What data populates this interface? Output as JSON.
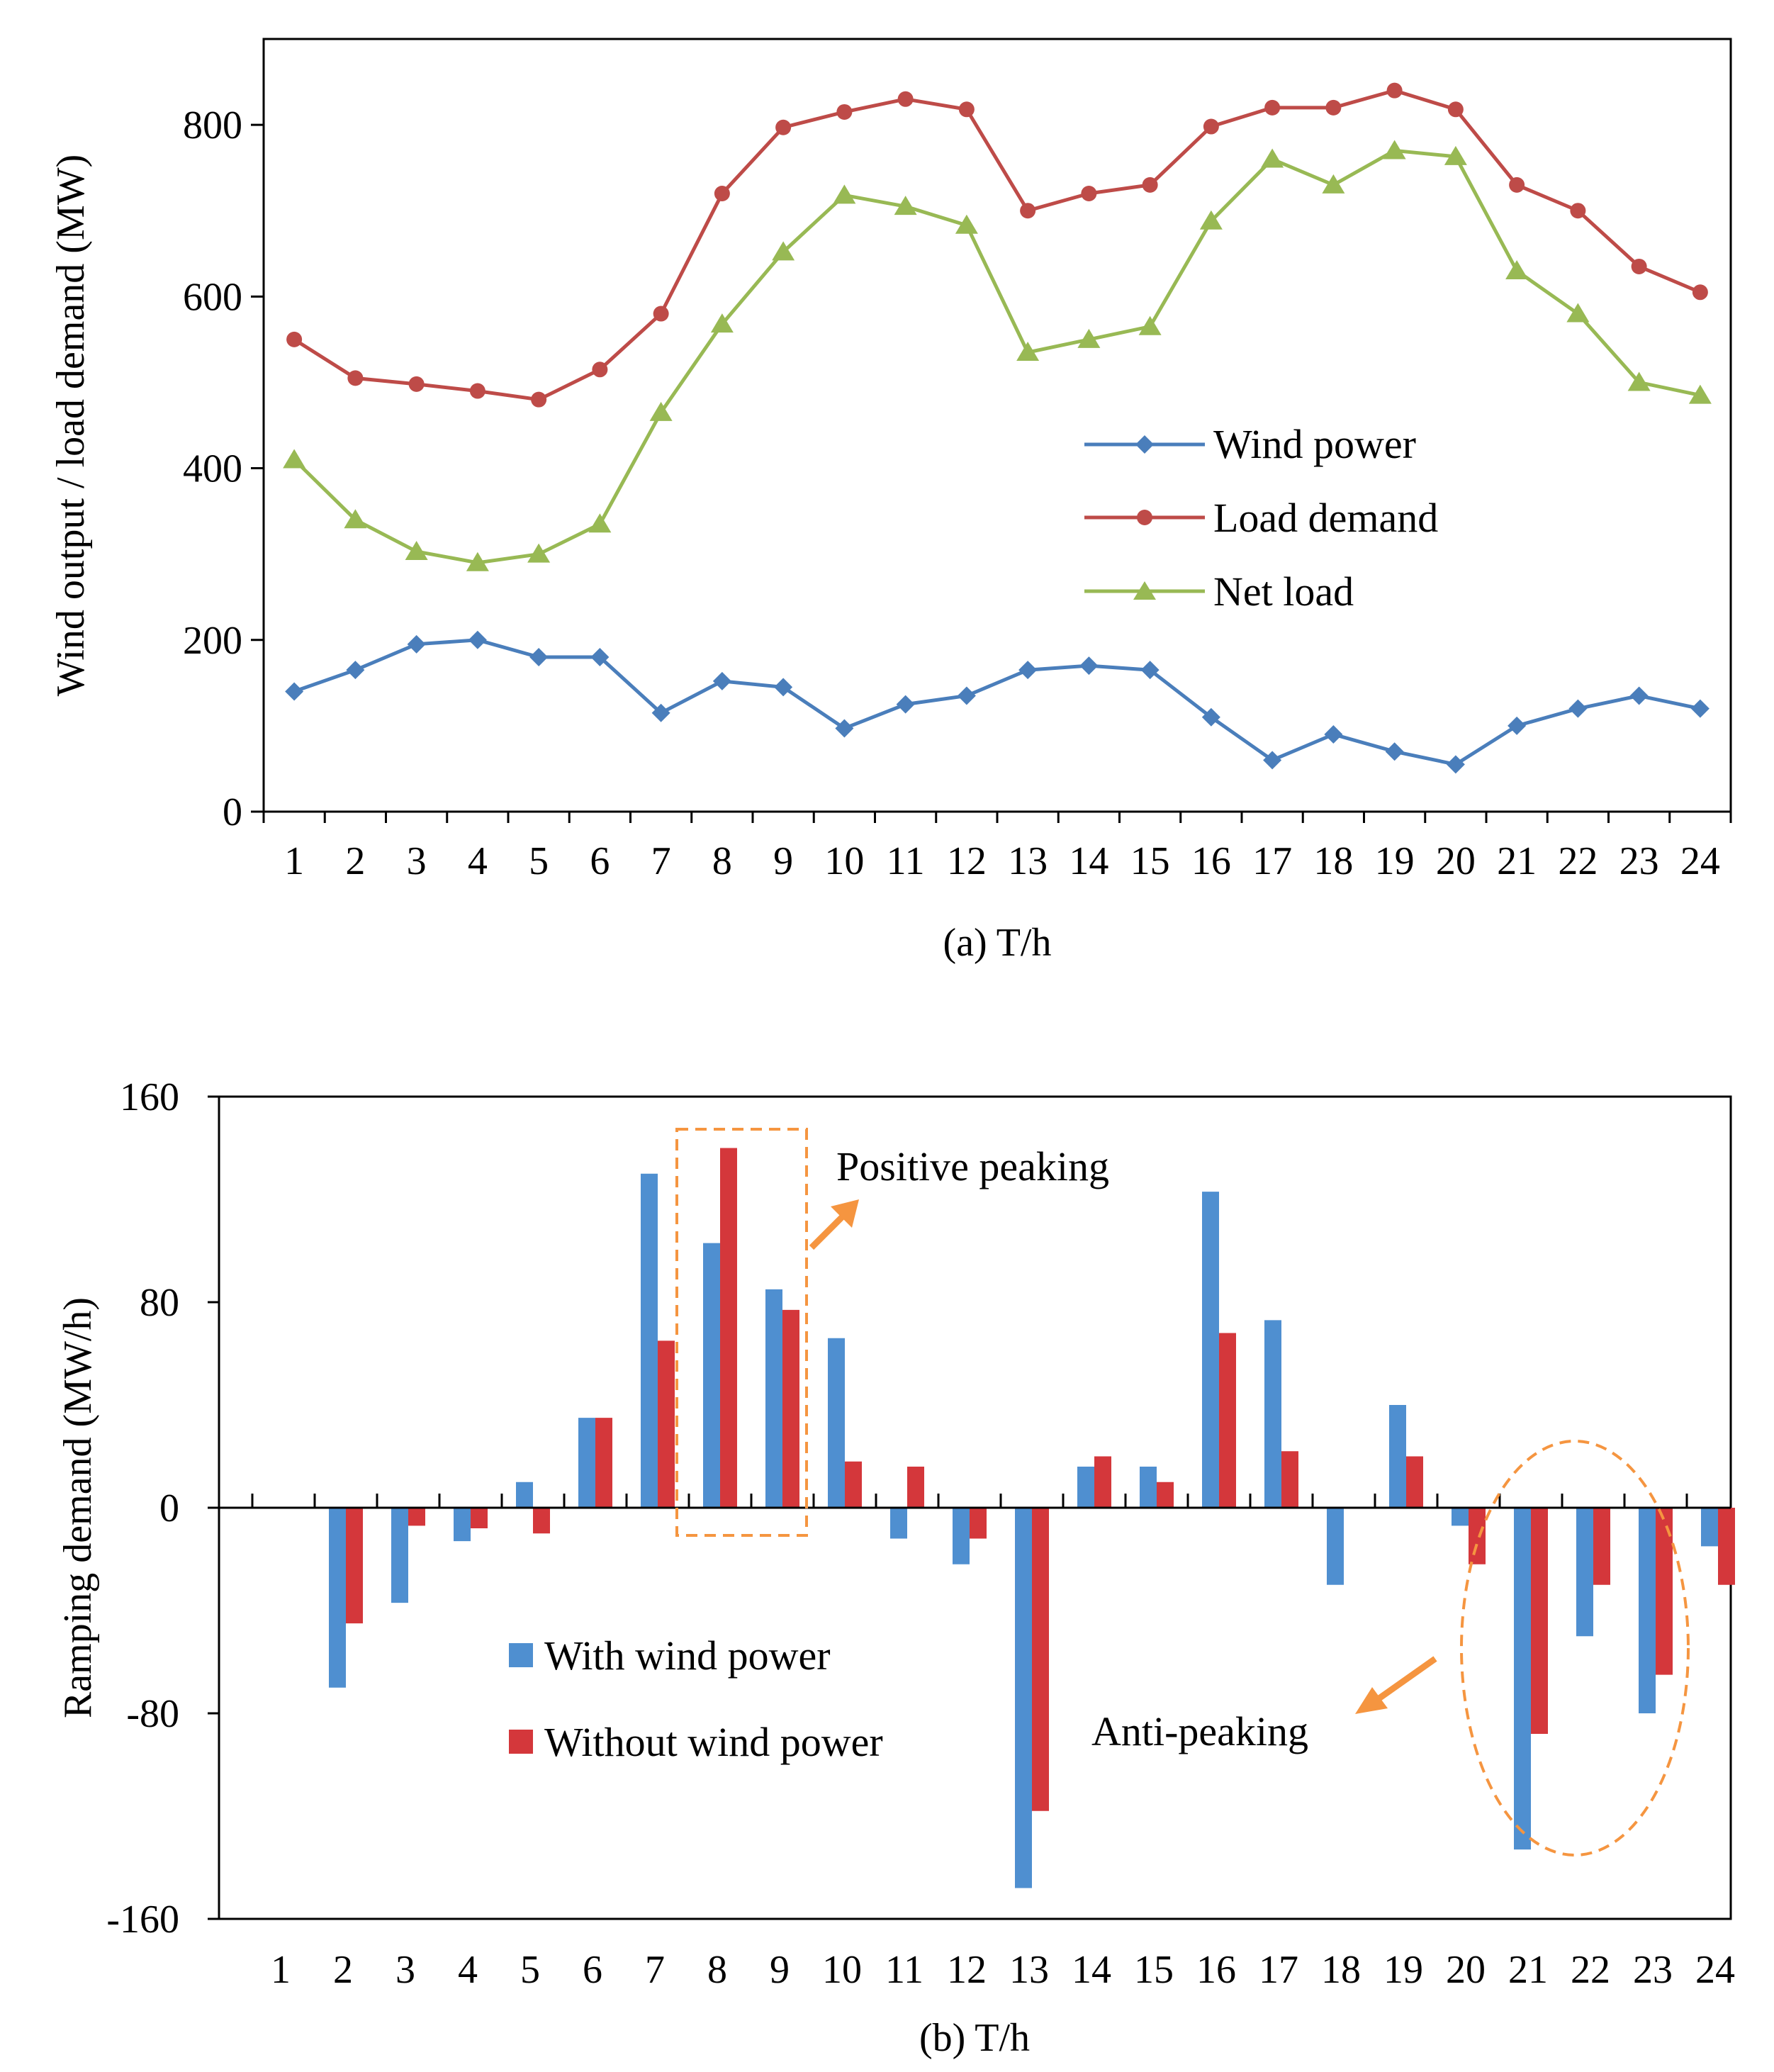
{
  "chart_data": [
    {
      "type": "line",
      "panel": "a",
      "title": "",
      "xlabel": "(a) T/h",
      "ylabel": "Wind output / load demand (MW)",
      "x": [
        1,
        2,
        3,
        4,
        5,
        6,
        7,
        8,
        9,
        10,
        11,
        12,
        13,
        14,
        15,
        16,
        17,
        18,
        19,
        20,
        21,
        22,
        23,
        24
      ],
      "ylim": [
        0,
        900
      ],
      "yticks": [
        0,
        200,
        400,
        600,
        800
      ],
      "grid": false,
      "legend_position": "center-right",
      "series": [
        {
          "name": "Wind power",
          "color": "#4a7ebb",
          "marker": "diamond",
          "values": [
            140,
            165,
            195,
            200,
            180,
            180,
            115,
            152,
            145,
            97,
            125,
            135,
            165,
            170,
            165,
            110,
            60,
            90,
            70,
            55,
            100,
            120,
            135,
            120
          ]
        },
        {
          "name": "Load demand",
          "color": "#be4b48",
          "marker": "circle",
          "values": [
            550,
            505,
            498,
            490,
            480,
            515,
            580,
            720,
            797,
            815,
            830,
            818,
            700,
            720,
            730,
            798,
            820,
            820,
            840,
            818,
            730,
            700,
            635,
            605
          ]
        },
        {
          "name": "Net load",
          "color": "#98b954",
          "marker": "triangle",
          "values": [
            410,
            340,
            303,
            290,
            300,
            335,
            465,
            568,
            652,
            718,
            705,
            683,
            535,
            550,
            565,
            688,
            760,
            730,
            770,
            763,
            630,
            580,
            500,
            485
          ]
        }
      ]
    },
    {
      "type": "bar",
      "panel": "b",
      "title": "",
      "xlabel": "(b) T/h",
      "ylabel": "Ramping demand (MW/h)",
      "categories": [
        "1",
        "2",
        "3",
        "4",
        "5",
        "6",
        "7",
        "8",
        "9",
        "10",
        "11",
        "12",
        "13",
        "14",
        "15",
        "16",
        "17",
        "18",
        "19",
        "20",
        "21",
        "22",
        "23",
        "24"
      ],
      "ylim": [
        -160,
        160
      ],
      "yticks": [
        -160,
        -80,
        0,
        80,
        160
      ],
      "grid": false,
      "legend_position": "center-left",
      "series": [
        {
          "name": "With wind power",
          "color": "#4f8fd0",
          "values": [
            null,
            -70,
            -37,
            -13,
            10,
            35,
            130,
            103,
            85,
            66,
            -12,
            -22,
            -148,
            16,
            16,
            123,
            73,
            -30,
            40,
            -7,
            -133,
            -50,
            -80,
            -15
          ]
        },
        {
          "name": "Without wind power",
          "color": "#d4373b",
          "values": [
            null,
            -45,
            -7,
            -8,
            -10,
            35,
            65,
            140,
            77,
            18,
            16,
            -12,
            -118,
            20,
            10,
            68,
            22,
            null,
            20,
            -22,
            -88,
            -30,
            -65,
            -30
          ]
        }
      ],
      "annotations": [
        {
          "text": "Positive peaking",
          "color": "#f59540"
        },
        {
          "text": "Anti-peaking",
          "color": "#f59540"
        }
      ]
    }
  ]
}
